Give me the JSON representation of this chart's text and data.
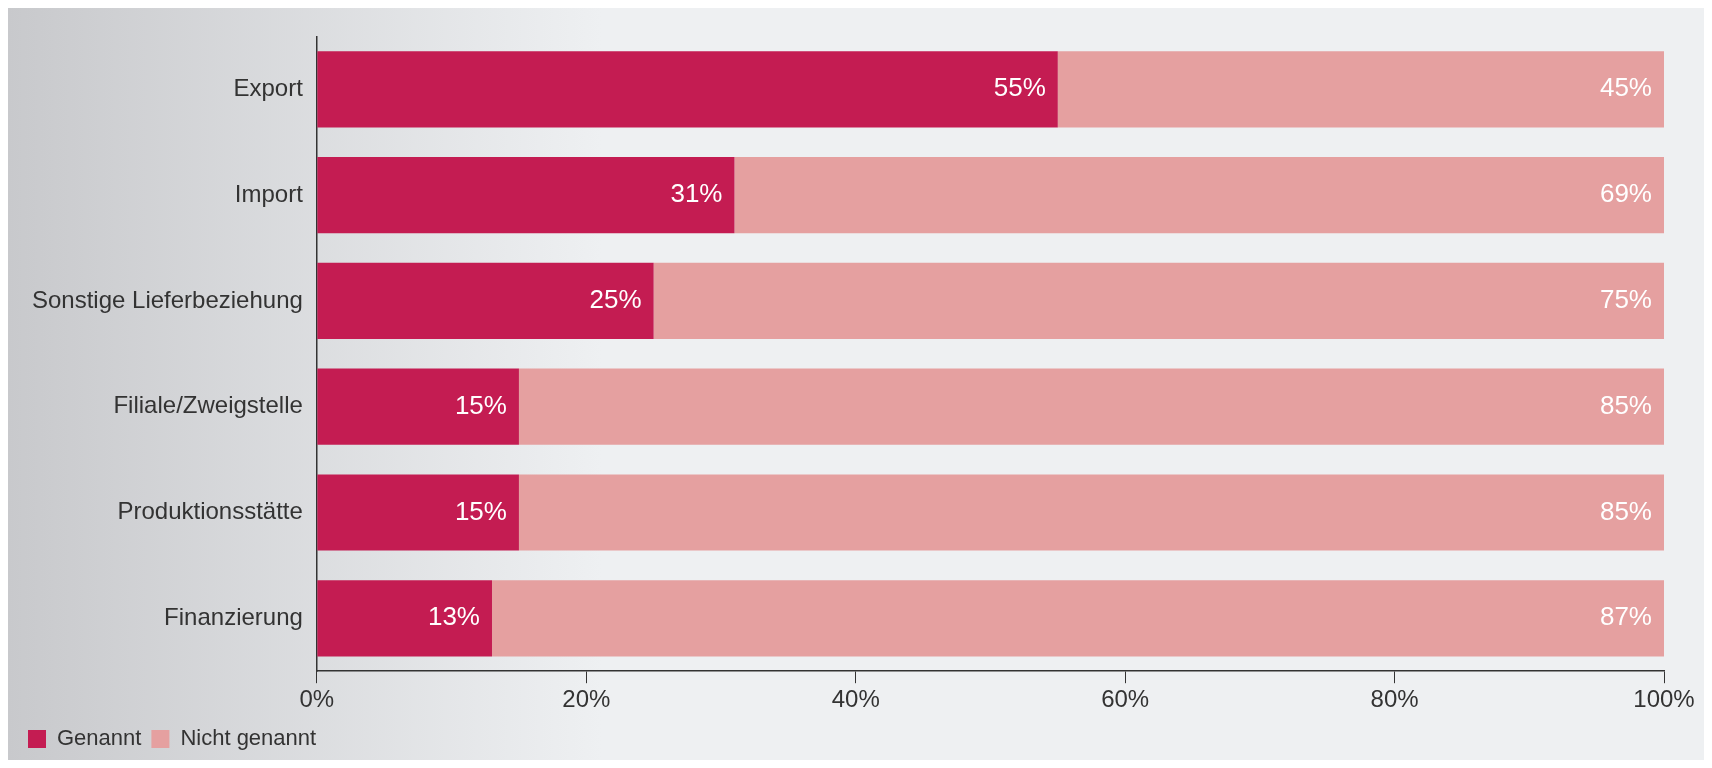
{
  "chart_data": {
    "type": "bar",
    "orientation": "horizontal",
    "stacked": true,
    "categories": [
      "Export",
      "Import",
      "Sonstige Lieferbeziehung",
      "Filiale/Zweigstelle",
      "Produktionsstätte",
      "Finanzierung"
    ],
    "series": [
      {
        "name": "Genannt",
        "color": "#c41c52",
        "values": [
          55,
          31,
          25,
          15,
          15,
          13
        ],
        "value_labels": [
          "55%",
          "31%",
          "25%",
          "15%",
          "15%",
          "13%"
        ]
      },
      {
        "name": "Nicht genannt",
        "color": "#e5a0a0",
        "values": [
          45,
          69,
          75,
          85,
          85,
          87
        ],
        "value_labels": [
          "45%",
          "69%",
          "75%",
          "85%",
          "85%",
          "87%"
        ]
      }
    ],
    "xlim": [
      0,
      100
    ],
    "xticks": [
      {
        "value": 0,
        "label": "0%"
      },
      {
        "value": 20,
        "label": "20%"
      },
      {
        "value": 40,
        "label": "40%"
      },
      {
        "value": 60,
        "label": "60%"
      },
      {
        "value": 80,
        "label": "80%"
      },
      {
        "value": 100,
        "label": "100%"
      }
    ],
    "grid": false,
    "legend": "bottom left"
  }
}
